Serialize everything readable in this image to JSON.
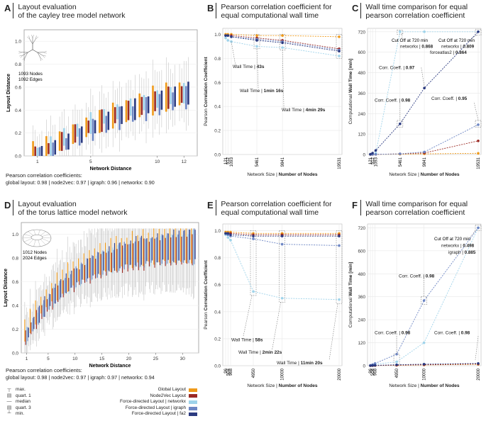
{
  "panels": {
    "A": {
      "letter": "A",
      "title1": "Layout evaluation",
      "title2": "of the cayley tree model network",
      "info1": "1093 Nodes",
      "info2": "1092 Edges",
      "xlabel": "Network Distance",
      "ylabel": "Layout Distance",
      "coef_heading": "Pearson correlation coefficients:",
      "coef_values": "global layout: 0.98 | node2vec: 0.97 | igraph: 0.96 | networkx: 0.90"
    },
    "B": {
      "letter": "B",
      "title1": "Pearson correlation coefficient for",
      "title2": "equal computational wall time",
      "ylabel_pre": "Pearson ",
      "ylabel_bold": "Correlation Coefficient",
      "xlabel_pre": "Network Size | ",
      "xlabel_bold": "Number of Nodes",
      "ann1_pre": "Wall Time | ",
      "ann1_bold": "43s",
      "ann2_pre": "Wall Time | ",
      "ann2_bold": "1min 16s",
      "ann3_pre": "Wall Time | ",
      "ann3_bold": "4min 29s"
    },
    "C": {
      "letter": "C",
      "title1": "Wall time comparison for equal",
      "title2": "pearson correlation coefficient",
      "ylabel_pre": "Computational ",
      "ylabel_bold": "Wall Time [min]",
      "xlabel_pre": "Network Size | ",
      "xlabel_bold": "Number of Nodes",
      "cut1_l1": "Cut Off at 720 min",
      "cut1_l2_pre": "networkx | ",
      "cut1_l2_bold": "0.868",
      "cut2_l1": "Cut Off at 720 min",
      "cut2_l2_pre": "networkx | ",
      "cut2_l2_bold": "0.809",
      "cut2_l3_pre": "forceatlas2 | ",
      "cut2_l3_bold": "0.864",
      "corr1_pre": "Corr. Coeff. | ",
      "corr1_bold": "0.97",
      "corr2_pre": "Corr. Coeff. | ",
      "corr2_bold": "0.98",
      "corr3_pre": "Corr. Coeff. | ",
      "corr3_bold": "0.95"
    },
    "D": {
      "letter": "D",
      "title1": "Layout evaluation",
      "title2": "of the torus lattice model network",
      "info1": "1012 Nodes",
      "info2": "2024 Edges",
      "xlabel": "Network Distance",
      "ylabel": "Layout Distance",
      "coef_heading": "Pearson correlation coefficients:",
      "coef_values": "global layout: 0.98 | node2vec: 0.97 | igraph: 0.97 | networkx: 0.94"
    },
    "E": {
      "letter": "E",
      "title1": "Pearson correlation coefficient for",
      "title2": "equal computational wall time",
      "ylabel_pre": "Pearson ",
      "ylabel_bold": "Correlation Coefficient",
      "xlabel_pre": "Network Size | ",
      "xlabel_bold": "Number of Nodes",
      "ann1_pre": "Wall Time | ",
      "ann1_bold": "58s",
      "ann2_pre": "Wall Time | ",
      "ann2_bold": "2min 22s",
      "ann3_pre": "Wall Time | ",
      "ann3_bold": "11min 20s"
    },
    "F": {
      "letter": "F",
      "title1": "Wall time comparison for equal",
      "title2": "pearson correlation coefficient",
      "ylabel_pre": "Computational ",
      "ylabel_bold": "Wall Time [min]",
      "xlabel_pre": "Network Size | ",
      "xlabel_bold": "Number of Nodes",
      "cut_l1": "Cut Off at 720 min",
      "cut_l2_pre": "networkx | ",
      "cut_l2_bold": "0.498",
      "cut_l3_pre": "igraph | ",
      "cut_l3_bold": "0.885",
      "corr1_pre": "Corr. Coeff. | ",
      "corr1_bold": "0.98",
      "corr2_pre": "Corr. Coeff. | ",
      "corr2_bold": "0.98",
      "corr3_pre": "Corr. Coeff. | ",
      "corr3_bold": "0.98"
    }
  },
  "legend": {
    "stats": [
      "max.",
      "quart. 1",
      "median",
      "quart. 3",
      "min."
    ],
    "methods": [
      {
        "label": "Global Layout",
        "color": "#ef9a1a"
      },
      {
        "label": "Node2Vec Layout",
        "color": "#9c2a24"
      },
      {
        "label": "Force-directed Layout | networkx",
        "color": "#9fd3ea"
      },
      {
        "label": "Force-directed Layout | igraph",
        "color": "#6d86c4"
      },
      {
        "label": "Force-directed Layout | fa2",
        "color": "#2b3a80"
      }
    ]
  },
  "chart_data": [
    {
      "id": "A",
      "type": "box",
      "title": "Layout evaluation of the cayley tree model network",
      "xlabel": "Network Distance",
      "ylabel": "Layout Distance",
      "x_ticks": [
        1,
        5,
        10,
        12
      ],
      "y_ticks": [
        "0.0",
        "0.2",
        "0.4",
        "0.6",
        "0.8",
        "1.0"
      ],
      "ylim": [
        0,
        1.1
      ],
      "xlim": [
        0,
        13
      ],
      "series_order": [
        "Global Layout",
        "Node2Vec Layout",
        "Force-directed Layout | networkx",
        "Force-directed Layout | igraph",
        "Force-directed Layout | fa2"
      ],
      "medians": [
        [
          0.01,
          0.01,
          0.02,
          0.02,
          0.02
        ],
        [
          0.05,
          0.06,
          0.08,
          0.04,
          0.07
        ],
        [
          0.1,
          0.12,
          0.16,
          0.1,
          0.12
        ],
        [
          0.16,
          0.19,
          0.22,
          0.16,
          0.18
        ],
        [
          0.22,
          0.25,
          0.28,
          0.22,
          0.25
        ],
        [
          0.27,
          0.3,
          0.34,
          0.27,
          0.3
        ],
        [
          0.32,
          0.35,
          0.38,
          0.32,
          0.35
        ],
        [
          0.36,
          0.39,
          0.42,
          0.36,
          0.4
        ],
        [
          0.41,
          0.43,
          0.46,
          0.4,
          0.44
        ],
        [
          0.45,
          0.47,
          0.49,
          0.44,
          0.48
        ],
        [
          0.48,
          0.5,
          0.52,
          0.47,
          0.51
        ],
        [
          0.51,
          0.53,
          0.54,
          0.5,
          0.54
        ]
      ]
    },
    {
      "id": "B",
      "type": "line",
      "x_ticks": [
        121,
        512,
        1093,
        5461,
        9841,
        19531
      ],
      "y_ticks": [
        "0.0",
        "0.2",
        "0.4",
        "0.6",
        "0.8",
        "1.0"
      ],
      "ylim": [
        0,
        1.05
      ],
      "series": [
        {
          "name": "Global Layout",
          "values": [
            1.0,
            1.0,
            1.0,
            0.99,
            0.99,
            0.98
          ]
        },
        {
          "name": "Node2Vec Layout",
          "values": [
            0.99,
            0.99,
            0.99,
            0.97,
            0.95,
            0.88
          ]
        },
        {
          "name": "Force-directed Layout | networkx",
          "values": [
            0.97,
            0.95,
            0.94,
            0.9,
            0.89,
            0.82
          ]
        },
        {
          "name": "Force-directed Layout | igraph",
          "values": [
            0.99,
            0.99,
            0.98,
            0.96,
            0.94,
            0.87
          ]
        },
        {
          "name": "Force-directed Layout | fa2",
          "values": [
            0.99,
            0.99,
            0.98,
            0.95,
            0.93,
            0.86
          ]
        }
      ]
    },
    {
      "id": "C",
      "type": "line",
      "x_ticks": [
        121,
        512,
        1093,
        5461,
        9841,
        19531
      ],
      "y_ticks": [
        "0",
        "120",
        "240",
        "360",
        "480",
        "600",
        "720"
      ],
      "ylim": [
        0,
        740
      ],
      "series": [
        {
          "name": "Global Layout",
          "values": [
            0.2,
            0.4,
            0.8,
            2,
            4,
            7
          ]
        },
        {
          "name": "Node2Vec Layout",
          "values": [
            0.3,
            0.6,
            1,
            4,
            9,
            80
          ]
        },
        {
          "name": "Force-directed Layout | networkx",
          "values": [
            1,
            3,
            8,
            720,
            720,
            720
          ]
        },
        {
          "name": "Force-directed Layout | igraph",
          "values": [
            0.2,
            0.5,
            1,
            4,
            15,
            175
          ]
        },
        {
          "name": "Force-directed Layout | fa2",
          "values": [
            2,
            8,
            24,
            180,
            390,
            720
          ]
        }
      ]
    },
    {
      "id": "D",
      "type": "box",
      "title": "Layout evaluation of the torus lattice model network",
      "xlabel": "Network Distance",
      "ylabel": "Layout Distance",
      "x_ticks": [
        1,
        5,
        10,
        15,
        20,
        25,
        30
      ],
      "y_ticks": [
        "0.0",
        "0.2",
        "0.4",
        "0.6",
        "0.8",
        "1.0"
      ],
      "ylim": [
        0,
        1.1
      ],
      "xlim": [
        0,
        33
      ]
    },
    {
      "id": "E",
      "type": "line",
      "x_ticks": [
        96,
        504,
        968,
        4950,
        10000,
        20000
      ],
      "y_ticks": [
        "0.0",
        "0.2",
        "0.4",
        "0.6",
        "0.8",
        "1.0"
      ],
      "ylim": [
        0,
        1.05
      ],
      "series": [
        {
          "name": "Global Layout",
          "values": [
            0.99,
            0.99,
            0.99,
            0.98,
            0.98,
            0.98
          ]
        },
        {
          "name": "Node2Vec Layout",
          "values": [
            0.98,
            0.98,
            0.98,
            0.97,
            0.97,
            0.97
          ]
        },
        {
          "name": "Force-directed Layout | networkx",
          "values": [
            0.97,
            0.95,
            0.93,
            0.55,
            0.5,
            0.49
          ]
        },
        {
          "name": "Force-directed Layout | igraph",
          "values": [
            0.98,
            0.97,
            0.96,
            0.94,
            0.9,
            0.89
          ]
        },
        {
          "name": "Force-directed Layout | fa2",
          "values": [
            0.98,
            0.98,
            0.97,
            0.96,
            0.96,
            0.96
          ]
        }
      ]
    },
    {
      "id": "F",
      "type": "line",
      "x_ticks": [
        96,
        504,
        968,
        4950,
        10000,
        20000
      ],
      "y_ticks": [
        "0",
        "120",
        "240",
        "360",
        "480",
        "600",
        "720"
      ],
      "ylim": [
        0,
        740
      ],
      "series": [
        {
          "name": "Global Layout",
          "values": [
            0.2,
            0.4,
            0.8,
            2,
            4,
            7
          ]
        },
        {
          "name": "Node2Vec Layout",
          "values": [
            0.3,
            0.6,
            1,
            3,
            5,
            9
          ]
        },
        {
          "name": "Force-directed Layout | networkx",
          "values": [
            1,
            4,
            8,
            20,
            120,
            720
          ]
        },
        {
          "name": "Force-directed Layout | igraph",
          "values": [
            2,
            6,
            12,
            60,
            340,
            720
          ]
        },
        {
          "name": "Force-directed Layout | fa2",
          "values": [
            0.5,
            1,
            2,
            5,
            8,
            12
          ]
        }
      ]
    }
  ]
}
